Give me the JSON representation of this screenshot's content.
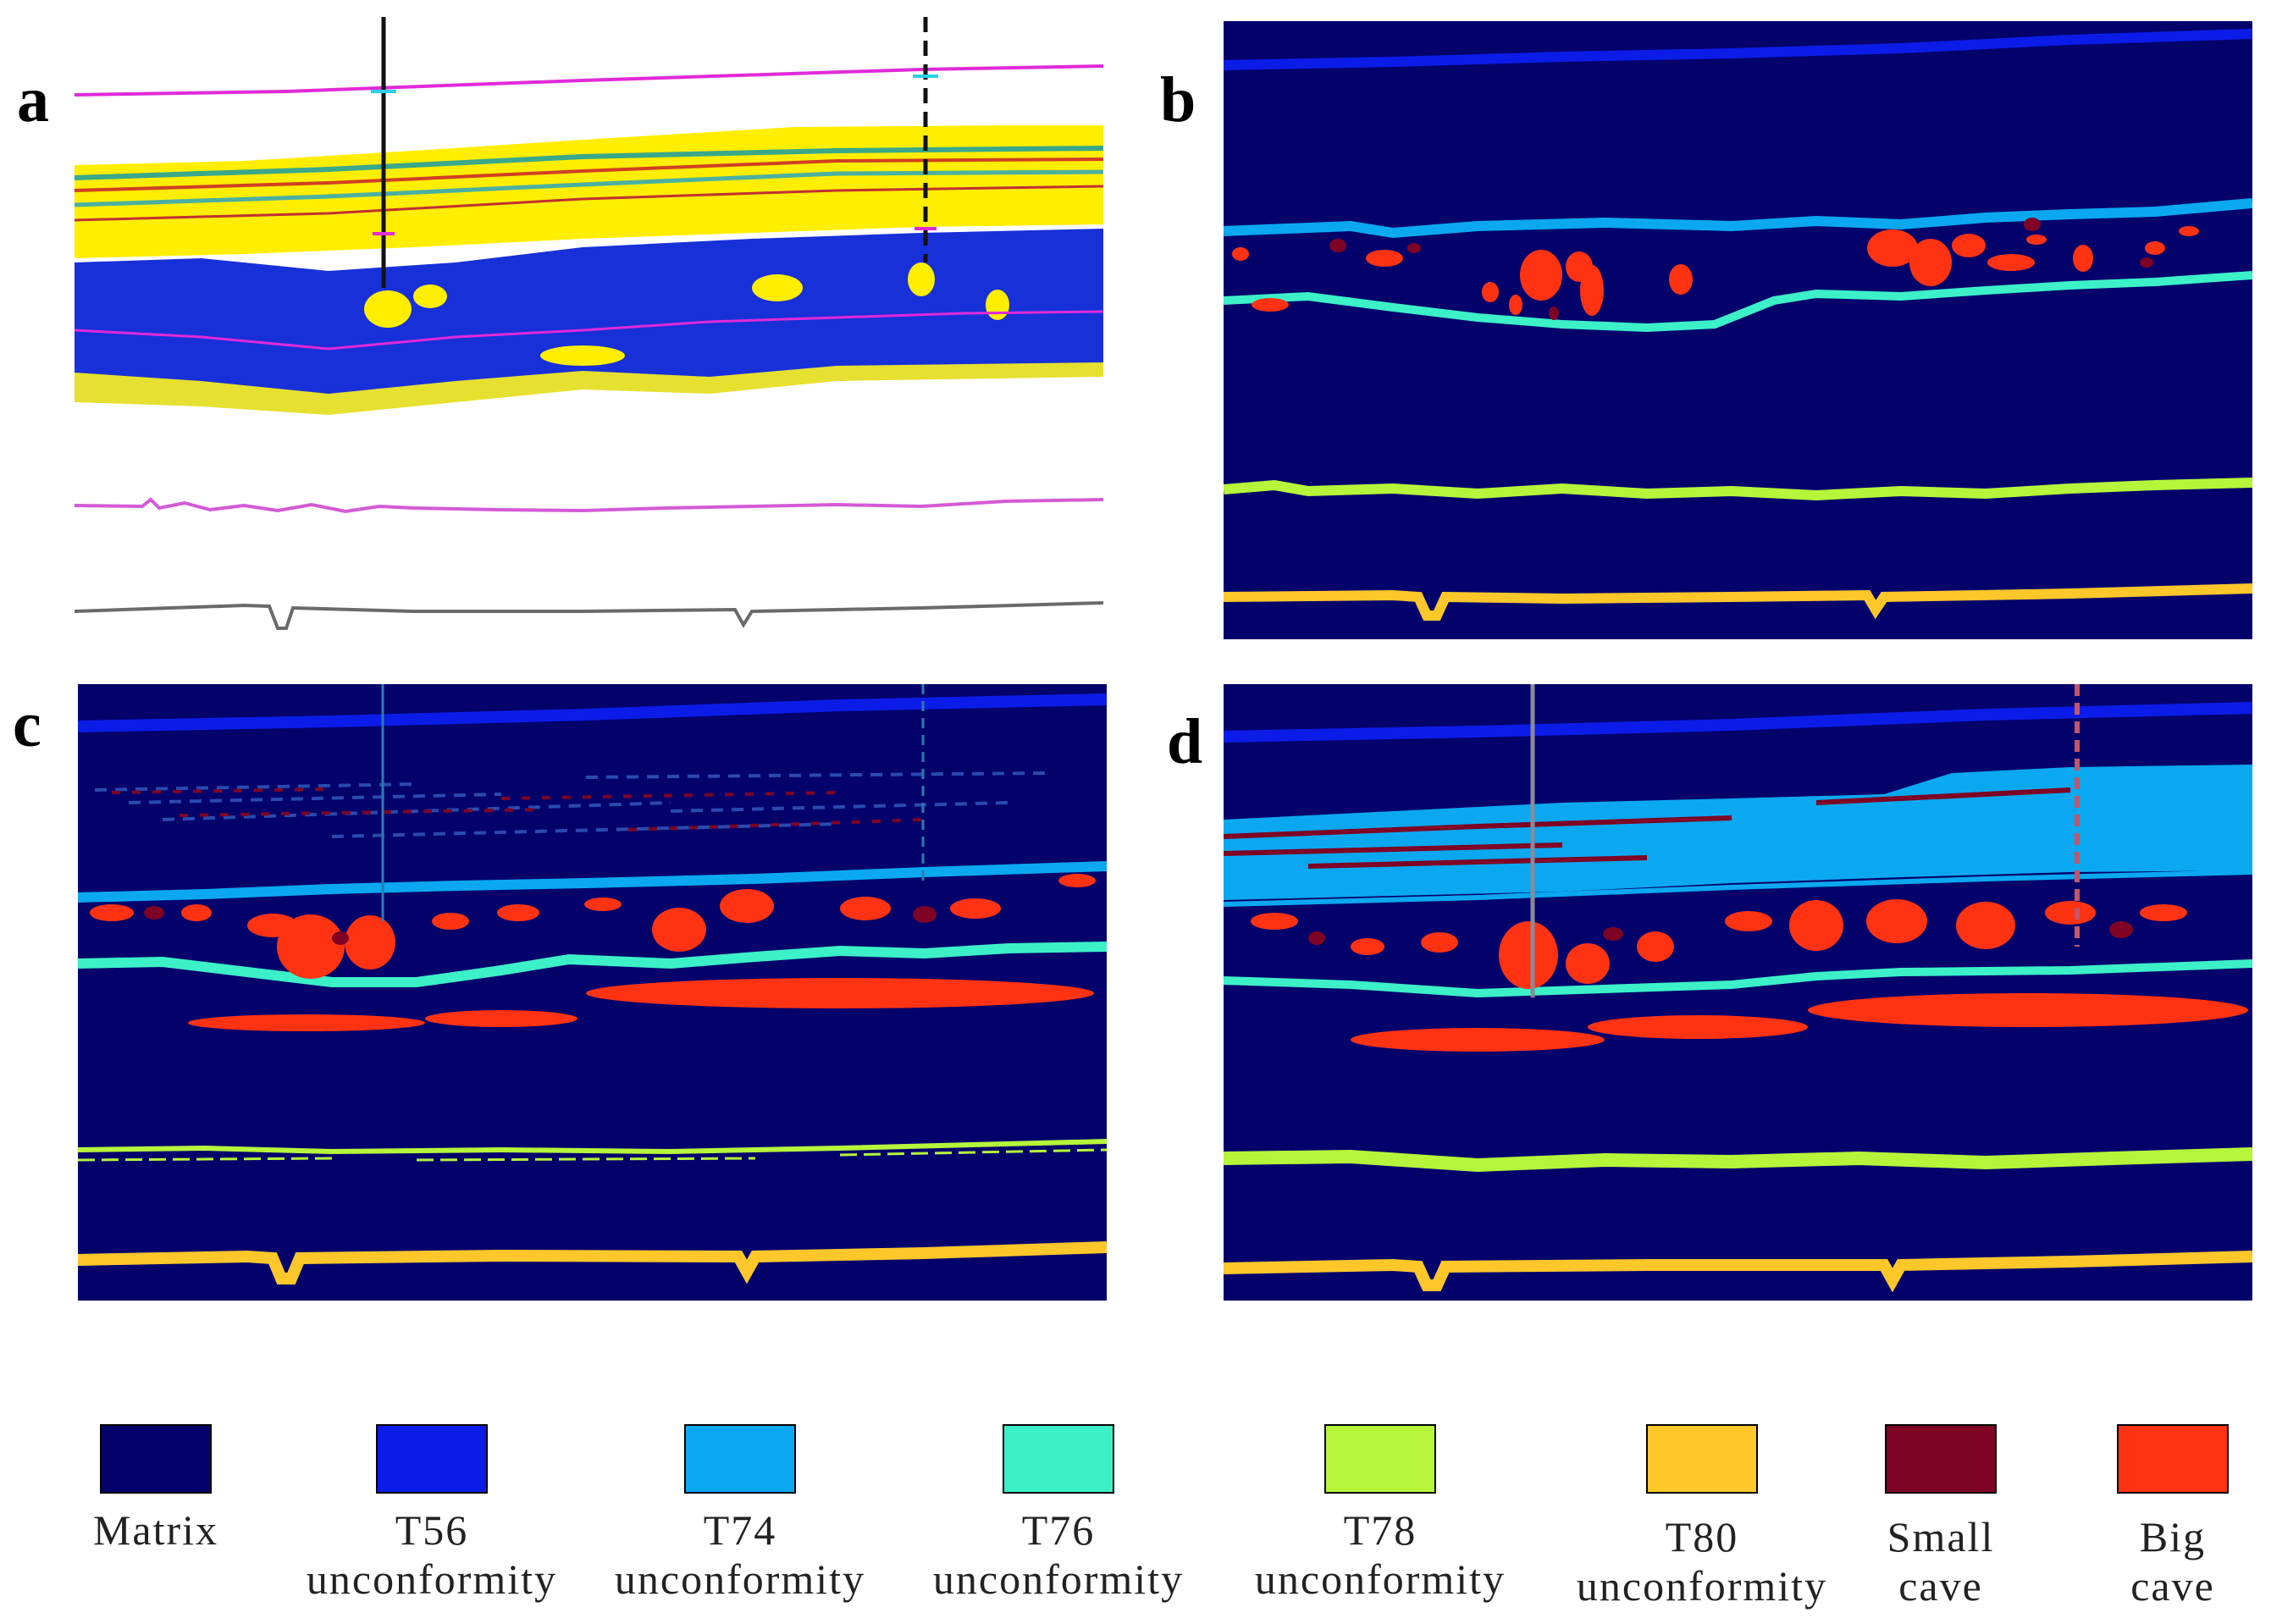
{
  "figure": {
    "panels": [
      {
        "letter": "a",
        "kind": "seismic"
      },
      {
        "letter": "b",
        "kind": "facies-model"
      },
      {
        "letter": "c",
        "kind": "facies-prediction"
      },
      {
        "letter": "d",
        "kind": "facies-prediction"
      }
    ]
  },
  "legend": {
    "items": [
      {
        "label": "Matrix",
        "color": "#03026b"
      },
      {
        "label": "T56\nunconformity",
        "color": "#0c1ce8"
      },
      {
        "label": "T74\nunconformity",
        "color": "#0aa8f0"
      },
      {
        "label": "T76\nunconformity",
        "color": "#3cf0c8"
      },
      {
        "label": "T78\nunconformity",
        "color": "#b6f53a"
      },
      {
        "label": "T80\nunconformity",
        "color": "#ffc72a"
      },
      {
        "label": "Small\ncave",
        "color": "#7e0324"
      },
      {
        "label": "Big\ncave",
        "color": "#ff3312"
      }
    ]
  },
  "colors": {
    "matrix": "#03026b",
    "t56": "#0c1ce8",
    "t74": "#0aa8f0",
    "t76": "#3cf0c8",
    "t78": "#b6f53a",
    "t80": "#ffc72a",
    "small_cave": "#7e0324",
    "big_cave": "#ff3312",
    "seismic_yellow": "#ffee00",
    "seismic_blue": "#1830d8",
    "horizon_magenta": "#e02ad8",
    "trace_gray": "#6a6a6a",
    "well_line": "#111111"
  }
}
